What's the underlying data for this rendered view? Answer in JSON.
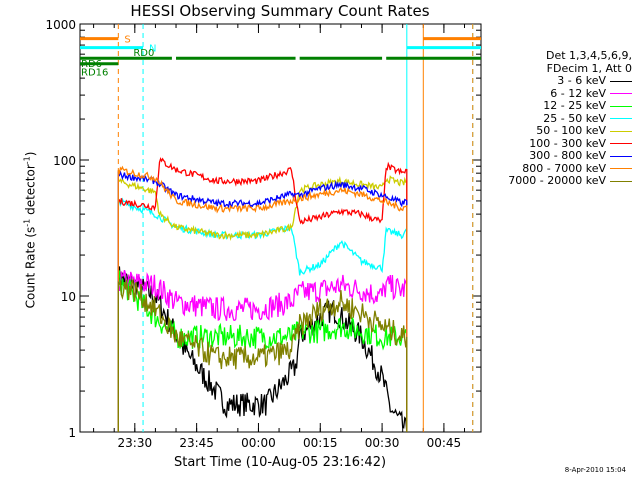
{
  "chart_data": {
    "type": "line",
    "title": "HESSI Observing Summary Count Rates",
    "xlabel": "Start Time (10-Aug-05 23:16:42)",
    "ylabel_main": "Count Rate (s",
    "ylabel_sup1": "-1",
    "ylabel_mid": " detector",
    "ylabel_sup2": "-1",
    "ylabel_end": ")",
    "y_scale": "log",
    "ylim": [
      1,
      1000
    ],
    "xlim": [
      "23:16:42",
      "00:54:00"
    ],
    "x_ticks": [
      "23:30",
      "23:45",
      "00:00",
      "00:15",
      "00:30",
      "00:45"
    ],
    "y_ticks": [
      "1",
      "10",
      "100",
      "1000"
    ],
    "legend_header": [
      "Det 1,3,4,5,6,9,",
      "FDecim 1, Att 0"
    ],
    "legend_position": "right",
    "series": [
      {
        "name": "3 - 6 keV",
        "color": "#000000",
        "times": [
          "23:26",
          "23:35",
          "23:42",
          "23:52",
          "00:02",
          "00:09",
          "00:10",
          "00:15",
          "00:18",
          "00:25",
          "00:30",
          "00:32",
          "00:36"
        ],
        "values": [
          14,
          10,
          4,
          1.6,
          1.6,
          3,
          5,
          7,
          8,
          5,
          2.5,
          1.5,
          1
        ]
      },
      {
        "name": "6 - 12 keV",
        "color": "#ff00ff",
        "times": [
          "23:26",
          "23:35",
          "23:40",
          "23:50",
          "00:00",
          "00:08",
          "00:10",
          "00:15",
          "00:20",
          "00:25",
          "00:30",
          "00:31",
          "00:35",
          "00:36"
        ],
        "values": [
          13,
          12,
          9,
          8,
          8,
          9,
          10.5,
          11,
          12,
          11,
          10,
          12,
          11,
          12
        ]
      },
      {
        "name": "12 - 25 keV",
        "color": "#00ff00",
        "times": [
          "23:26",
          "23:30",
          "23:35",
          "23:40",
          "23:50",
          "00:00",
          "00:08",
          "00:10",
          "00:15",
          "00:20",
          "00:25",
          "00:30",
          "00:35",
          "00:36"
        ],
        "values": [
          13,
          10,
          7,
          5,
          5,
          5,
          5,
          5.5,
          5.5,
          6,
          5.5,
          5,
          5,
          5
        ]
      },
      {
        "name": "25 - 50 keV",
        "color": "#00ffff",
        "times": [
          "23:26",
          "23:35",
          "23:40",
          "23:50",
          "00:00",
          "00:08",
          "00:10",
          "00:15",
          "00:20",
          "00:25",
          "00:30",
          "00:31",
          "00:35",
          "00:36"
        ],
        "values": [
          50,
          40,
          32,
          28,
          28,
          32,
          15,
          17,
          25,
          18,
          16,
          30,
          28,
          30
        ]
      },
      {
        "name": "50 - 100 keV",
        "color": "#cccc00",
        "times": [
          "23:26",
          "23:35",
          "23:36",
          "23:40",
          "23:50",
          "00:00",
          "00:08",
          "00:10",
          "00:15",
          "00:20",
          "00:25",
          "00:30",
          "00:31",
          "00:35",
          "00:36"
        ],
        "values": [
          70,
          58,
          40,
          32,
          28,
          28,
          32,
          60,
          66,
          70,
          66,
          62,
          73,
          67,
          70
        ]
      },
      {
        "name": "100 - 300 keV",
        "color": "#ff0000",
        "times": [
          "23:26",
          "23:35",
          "23:36",
          "23:40",
          "23:50",
          "00:00",
          "00:08",
          "00:10",
          "00:15",
          "00:20",
          "00:25",
          "00:30",
          "00:31",
          "00:35",
          "00:36"
        ],
        "values": [
          50,
          45,
          100,
          85,
          70,
          70,
          85,
          35,
          38,
          42,
          40,
          35,
          90,
          80,
          85
        ]
      },
      {
        "name": "300 - 800 keV",
        "color": "#0000ff",
        "times": [
          "23:26",
          "23:35",
          "23:40",
          "23:50",
          "00:00",
          "00:08",
          "00:10",
          "00:15",
          "00:20",
          "00:25",
          "00:30",
          "00:35",
          "00:36"
        ],
        "values": [
          78,
          70,
          55,
          48,
          48,
          56,
          55,
          62,
          66,
          62,
          55,
          48,
          50
        ]
      },
      {
        "name": "800 - 7000 keV",
        "color": "#ff8000",
        "times": [
          "23:26",
          "23:35",
          "23:40",
          "23:50",
          "00:00",
          "00:08",
          "00:10",
          "00:15",
          "00:20",
          "00:25",
          "00:30",
          "00:35",
          "00:36"
        ],
        "values": [
          85,
          74,
          50,
          44,
          44,
          50,
          52,
          56,
          60,
          56,
          50,
          44,
          46
        ]
      },
      {
        "name": "7000 - 20000 keV",
        "color": "#808000",
        "times": [
          "23:26",
          "23:30",
          "23:35",
          "23:40",
          "23:50",
          "00:00",
          "00:08",
          "00:10",
          "00:15",
          "00:20",
          "00:25",
          "00:30",
          "00:35",
          "00:36"
        ],
        "values": [
          12,
          11,
          8,
          5,
          3.5,
          3.5,
          4,
          6,
          8,
          9,
          7.5,
          6,
          5,
          5
        ]
      }
    ],
    "flags": [
      {
        "label": "S",
        "color": "#ff8000",
        "y": 780,
        "spans": [
          [
            "23:16:42",
            "23:26"
          ],
          [
            "00:40",
            "00:54"
          ]
        ]
      },
      {
        "label": "N",
        "color": "#00ffff",
        "y": 670,
        "spans": [
          [
            "23:16:42",
            "23:32"
          ],
          [
            "00:36",
            "00:54"
          ]
        ]
      },
      {
        "label": "RD0",
        "color": "#008000",
        "y": 560,
        "spans": [
          [
            "23:16:42",
            "23:39"
          ],
          [
            "23:40",
            "00:09"
          ],
          [
            "00:10",
            "00:30"
          ],
          [
            "00:31",
            "00:54"
          ]
        ]
      },
      {
        "label": "RD6",
        "color": "#008000",
        "y": 510,
        "spans": [
          [
            "23:16:42",
            "23:26"
          ]
        ]
      },
      {
        "label": "RD16",
        "color": "#008000",
        "y": 440,
        "spans": []
      }
    ],
    "vertical_markers": [
      {
        "time": "23:26",
        "color": "#ff8000",
        "dash": true
      },
      {
        "time": "23:32",
        "color": "#00ffff",
        "dash": true
      },
      {
        "time": "00:36",
        "color": "#00ffff",
        "dash": false
      },
      {
        "time": "00:40",
        "color": "#ff8000",
        "dash": false
      },
      {
        "time": "00:52",
        "color": "#00ffff",
        "dash": true
      },
      {
        "time": "00:52",
        "color": "#ff8000",
        "dash": true
      }
    ]
  },
  "footer_stamp": "8-Apr-2010 15:04"
}
